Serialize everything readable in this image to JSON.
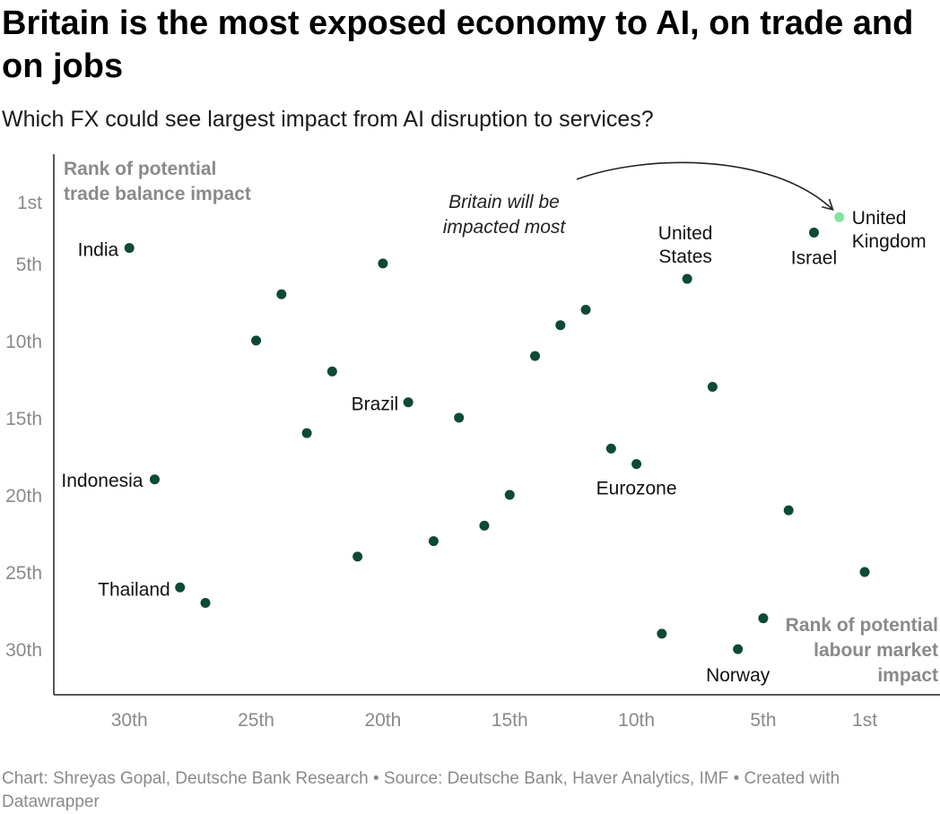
{
  "header": {
    "title": "Britain is the most exposed economy to AI, on trade and on jobs",
    "subtitle": "Which FX could see largest impact from AI disruption to services?"
  },
  "footer": {
    "credit": "Chart: Shreyas Gopal, Deutsche Bank Research • Source: Deutsche Bank, Haver Analytics, IMF • Created with Datawrapper"
  },
  "colors": {
    "point": "#0d4a34",
    "highlight": "#7ee79b",
    "axis": "#222222",
    "tick_label": "#8a8a8a"
  },
  "chart_data": {
    "type": "scatter",
    "xlabel": "Rank of potential labour market impact",
    "ylabel": "Rank of potential trade balance impact",
    "x_axis": {
      "range": [
        31,
        0
      ],
      "ticks": [
        30,
        25,
        20,
        15,
        10,
        5,
        1
      ],
      "tick_labels": [
        "30th",
        "25th",
        "20th",
        "15th",
        "10th",
        "5th",
        "1st"
      ]
    },
    "y_axis": {
      "range": [
        0,
        33
      ],
      "ticks": [
        1,
        5,
        10,
        15,
        20,
        25,
        30
      ],
      "tick_labels": [
        "1st",
        "5th",
        "10th",
        "15th",
        "20th",
        "25th",
        "30th"
      ]
    },
    "grid": false,
    "annotation": {
      "text_lines": [
        "Britain will be",
        "impacted most"
      ],
      "target": "United Kingdom"
    },
    "points": [
      {
        "label": "United Kingdom",
        "label_lines": [
          "United",
          "Kingdom"
        ],
        "x": 2,
        "y": 2,
        "highlight": true
      },
      {
        "label": "Israel",
        "label_lines": [
          "Israel"
        ],
        "x": 3,
        "y": 3
      },
      {
        "label": "United States",
        "label_lines": [
          "United",
          "States"
        ],
        "x": 8,
        "y": 6
      },
      {
        "label": "India",
        "label_lines": [
          "India"
        ],
        "x": 30,
        "y": 4
      },
      {
        "label": "Brazil",
        "label_lines": [
          "Brazil"
        ],
        "x": 19,
        "y": 14
      },
      {
        "label": "Indonesia",
        "label_lines": [
          "Indonesia"
        ],
        "x": 29,
        "y": 19
      },
      {
        "label": "Eurozone",
        "label_lines": [
          "Eurozone"
        ],
        "x": 10,
        "y": 18
      },
      {
        "label": "Thailand",
        "label_lines": [
          "Thailand"
        ],
        "x": 28,
        "y": 26
      },
      {
        "label": "Norway",
        "label_lines": [
          "Norway"
        ],
        "x": 6,
        "y": 30
      },
      {
        "label": "",
        "x": 24,
        "y": 7
      },
      {
        "label": "",
        "x": 20,
        "y": 5
      },
      {
        "label": "",
        "x": 25,
        "y": 10
      },
      {
        "label": "",
        "x": 22,
        "y": 12
      },
      {
        "label": "",
        "x": 23,
        "y": 16
      },
      {
        "label": "",
        "x": 17,
        "y": 15
      },
      {
        "label": "",
        "x": 14,
        "y": 11
      },
      {
        "label": "",
        "x": 13,
        "y": 9
      },
      {
        "label": "",
        "x": 12,
        "y": 8
      },
      {
        "label": "",
        "x": 7,
        "y": 13
      },
      {
        "label": "",
        "x": 11,
        "y": 17
      },
      {
        "label": "",
        "x": 15,
        "y": 20
      },
      {
        "label": "",
        "x": 16,
        "y": 22
      },
      {
        "label": "",
        "x": 18,
        "y": 23
      },
      {
        "label": "",
        "x": 21,
        "y": 24
      },
      {
        "label": "",
        "x": 27,
        "y": 27
      },
      {
        "label": "",
        "x": 4,
        "y": 21
      },
      {
        "label": "",
        "x": 1,
        "y": 25
      },
      {
        "label": "",
        "x": 5,
        "y": 28
      },
      {
        "label": "",
        "x": 9,
        "y": 29
      }
    ]
  }
}
